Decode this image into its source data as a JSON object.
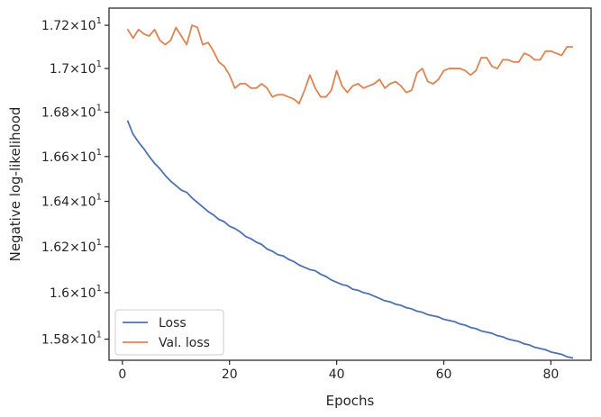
{
  "chart_data": {
    "type": "line",
    "xlabel": "Epochs",
    "ylabel": "Negative log-likelihood",
    "x": [
      1,
      2,
      3,
      4,
      5,
      6,
      7,
      8,
      9,
      10,
      11,
      12,
      13,
      14,
      15,
      16,
      17,
      18,
      19,
      20,
      21,
      22,
      23,
      24,
      25,
      26,
      27,
      28,
      29,
      30,
      31,
      32,
      33,
      34,
      35,
      36,
      37,
      38,
      39,
      40,
      41,
      42,
      43,
      44,
      45,
      46,
      47,
      48,
      49,
      50,
      51,
      52,
      53,
      54,
      55,
      56,
      57,
      58,
      59,
      60,
      61,
      62,
      63,
      64,
      65,
      66,
      67,
      68,
      69,
      70,
      71,
      72,
      73,
      74,
      75,
      76,
      77,
      78,
      79,
      80,
      81,
      82,
      83,
      84
    ],
    "series": [
      {
        "name": "Loss",
        "color": "#4c72b0",
        "values": [
          16.76,
          16.7,
          16.665,
          16.635,
          16.6,
          16.57,
          16.545,
          16.515,
          16.49,
          16.47,
          16.45,
          16.44,
          16.415,
          16.395,
          16.375,
          16.355,
          16.34,
          16.32,
          16.31,
          16.29,
          16.28,
          16.265,
          16.245,
          16.235,
          16.22,
          16.21,
          16.19,
          16.18,
          16.165,
          16.16,
          16.145,
          16.135,
          16.12,
          16.11,
          16.1,
          16.095,
          16.08,
          16.07,
          16.055,
          16.045,
          16.035,
          16.03,
          16.015,
          16.01,
          16.0,
          15.995,
          15.985,
          15.975,
          15.965,
          15.96,
          15.95,
          15.945,
          15.935,
          15.93,
          15.92,
          15.915,
          15.905,
          15.9,
          15.895,
          15.885,
          15.88,
          15.875,
          15.865,
          15.86,
          15.85,
          15.845,
          15.835,
          15.83,
          15.825,
          15.815,
          15.81,
          15.8,
          15.795,
          15.79,
          15.78,
          15.775,
          15.765,
          15.76,
          15.755,
          15.745,
          15.74,
          15.735,
          15.725,
          15.72
        ]
      },
      {
        "name": "Val. loss",
        "color": "#dd8452",
        "values": [
          17.18,
          17.14,
          17.18,
          17.16,
          17.15,
          17.18,
          17.13,
          17.11,
          17.13,
          17.19,
          17.15,
          17.11,
          17.2,
          17.19,
          17.11,
          17.12,
          17.08,
          17.03,
          17.01,
          16.97,
          16.91,
          16.93,
          16.93,
          16.91,
          16.91,
          16.93,
          16.91,
          16.87,
          16.88,
          16.88,
          16.87,
          16.86,
          16.84,
          16.9,
          16.97,
          16.91,
          16.87,
          16.87,
          16.9,
          16.99,
          16.92,
          16.89,
          16.92,
          16.93,
          16.91,
          16.92,
          16.93,
          16.95,
          16.91,
          16.93,
          16.94,
          16.92,
          16.89,
          16.9,
          16.98,
          17.0,
          16.94,
          16.93,
          16.95,
          16.99,
          17.0,
          17.0,
          17.0,
          16.99,
          16.97,
          16.99,
          17.05,
          17.05,
          17.01,
          17.0,
          17.04,
          17.04,
          17.03,
          17.03,
          17.07,
          17.06,
          17.04,
          17.04,
          17.08,
          17.08,
          17.07,
          17.06,
          17.1,
          17.1
        ]
      }
    ],
    "xlim": [
      -2.5,
      87.5
    ],
    "ylim": [
      15.71,
      17.28
    ],
    "xticks": [
      0,
      20,
      40,
      60,
      80
    ],
    "yticks": [
      15.8,
      16.0,
      16.2,
      16.4,
      16.6,
      16.8,
      17.0,
      17.2
    ],
    "ytick_labels": [
      {
        "mant": "1.58",
        "exp": "1"
      },
      {
        "mant": "1.6",
        "exp": "1"
      },
      {
        "mant": "1.62",
        "exp": "1"
      },
      {
        "mant": "1.64",
        "exp": "1"
      },
      {
        "mant": "1.66",
        "exp": "1"
      },
      {
        "mant": "1.68",
        "exp": "1"
      },
      {
        "mant": "1.7",
        "exp": "1"
      },
      {
        "mant": "1.72",
        "exp": "1"
      }
    ],
    "tick_base": "10",
    "y_scale": "log",
    "grid": false,
    "legend_position": "bottom-left"
  }
}
